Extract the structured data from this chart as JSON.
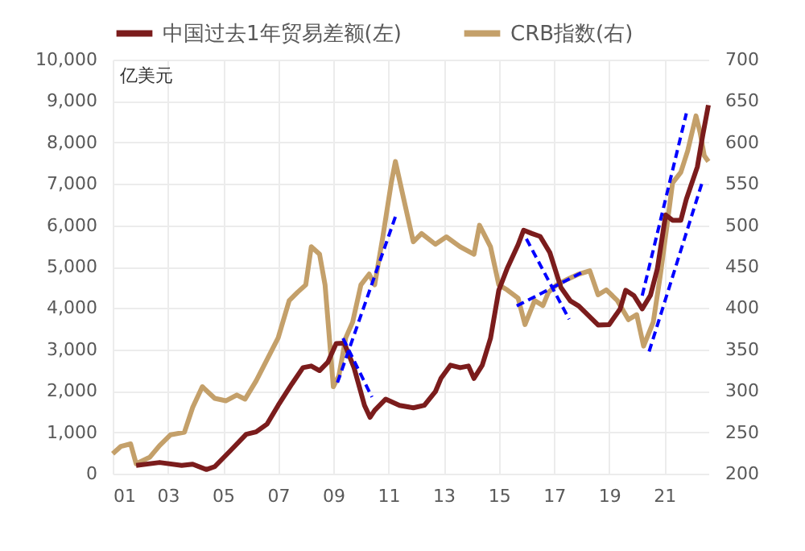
{
  "chart_data": {
    "type": "line",
    "ylabel": "亿美元",
    "legend": "top",
    "grid": true,
    "xlim": [
      2001,
      2022.6
    ],
    "xticks": [
      {
        "value": 2001,
        "label": "01"
      },
      {
        "value": 2003,
        "label": "03"
      },
      {
        "value": 2005,
        "label": "05"
      },
      {
        "value": 2007,
        "label": "07"
      },
      {
        "value": 2009,
        "label": "09"
      },
      {
        "value": 2011,
        "label": "11"
      },
      {
        "value": 2013,
        "label": "13"
      },
      {
        "value": 2015,
        "label": "15"
      },
      {
        "value": 2017,
        "label": "17"
      },
      {
        "value": 2019,
        "label": "19"
      },
      {
        "value": 2021,
        "label": "21"
      }
    ],
    "ylim": [
      0,
      10000
    ],
    "yticks": [
      0,
      {
        "value": 1000,
        "label": "1,000"
      },
      {
        "value": 2000,
        "label": "2,000"
      },
      {
        "value": 3000,
        "label": "3,000"
      },
      {
        "value": 4000,
        "label": "4,000"
      },
      {
        "value": 5000,
        "label": "5,000"
      },
      {
        "value": 6000,
        "label": "6,000"
      },
      {
        "value": 7000,
        "label": "7,000"
      },
      {
        "value": 8000,
        "label": "8,000"
      },
      {
        "value": 9000,
        "label": "9,000"
      },
      {
        "value": 10000,
        "label": "10,000"
      }
    ],
    "y2lim": [
      200,
      700
    ],
    "y2ticks": [
      200,
      250,
      300,
      350,
      400,
      450,
      500,
      550,
      600,
      650,
      700
    ],
    "series": [
      {
        "name": "中国过去1年贸易差额(左)",
        "color": "#7b1c1c",
        "x": [
          2001.85,
          2002.7,
          2003.5,
          2003.9,
          2004.4,
          2004.7,
          2005.26,
          2005.84,
          2006.2,
          2006.6,
          2007.0,
          2007.5,
          2007.9,
          2008.2,
          2008.5,
          2008.8,
          2009.1,
          2009.4,
          2009.75,
          2010.13,
          2010.33,
          2010.5,
          2010.9,
          2011.4,
          2011.9,
          2012.3,
          2012.7,
          2012.9,
          2013.25,
          2013.6,
          2013.9,
          2014.1,
          2014.4,
          2014.7,
          2015.0,
          2015.3,
          2015.7,
          2015.9,
          2016.2,
          2016.5,
          2016.85,
          2017.25,
          2017.6,
          2017.9,
          2018.6,
          2019.0,
          2019.4,
          2019.6,
          2019.9,
          2020.2,
          2020.5,
          2020.75,
          2021.05,
          2021.3,
          2021.6,
          2021.8,
          2022.2,
          2022.4,
          2022.6
        ],
        "values": [
          200,
          270,
          200,
          230,
          100,
          170,
          550,
          950,
          1010,
          1200,
          1650,
          2170,
          2560,
          2600,
          2490,
          2690,
          3140,
          3150,
          2560,
          1650,
          1360,
          1530,
          1800,
          1650,
          1590,
          1650,
          1980,
          2300,
          2620,
          2560,
          2600,
          2300,
          2620,
          3270,
          4430,
          4950,
          5530,
          5880,
          5800,
          5730,
          5340,
          4500,
          4170,
          4050,
          3590,
          3600,
          3980,
          4430,
          4300,
          3980,
          4310,
          4950,
          6250,
          6120,
          6120,
          6630,
          7410,
          8190,
          8900
        ]
      },
      {
        "name": "CRB指数(右)",
        "color": "#c4a06a",
        "axis": "y2",
        "x": [
          2001.0,
          2001.3,
          2001.65,
          2001.85,
          2002.35,
          2002.7,
          2003.1,
          2003.6,
          2003.9,
          2004.25,
          2004.7,
          2005.1,
          2005.5,
          2005.8,
          2006.2,
          2006.6,
          2007.0,
          2007.4,
          2007.7,
          2008.0,
          2008.2,
          2008.5,
          2008.7,
          2009.0,
          2009.2,
          2009.45,
          2009.7,
          2010.0,
          2010.3,
          2010.5,
          2010.8,
          2011.1,
          2011.25,
          2011.55,
          2011.9,
          2012.2,
          2012.7,
          2013.1,
          2013.6,
          2014.1,
          2014.3,
          2014.7,
          2015.0,
          2015.3,
          2015.7,
          2015.95,
          2016.3,
          2016.6,
          2016.8,
          2017.1,
          2017.5,
          2017.9,
          2018.3,
          2018.6,
          2018.9,
          2019.3,
          2019.7,
          2020.0,
          2020.25,
          2020.6,
          2020.85,
          2021.1,
          2021.3,
          2021.6,
          2021.85,
          2022.15,
          2022.3,
          2022.45,
          2022.6
        ],
        "values": [
          224,
          233,
          236,
          212,
          220,
          234,
          247,
          250,
          280,
          305,
          291,
          288,
          295,
          290,
          312,
          338,
          364,
          409,
          419,
          428,
          474,
          465,
          428,
          305,
          318,
          364,
          383,
          428,
          441,
          428,
          487,
          551,
          577,
          532,
          480,
          490,
          477,
          486,
          474,
          465,
          500,
          474,
          428,
          422,
          412,
          380,
          409,
          403,
          419,
          428,
          435,
          441,
          445,
          416,
          422,
          409,
          386,
          392,
          354,
          383,
          438,
          500,
          551,
          564,
          590,
          632,
          612,
          584,
          577
        ]
      },
      {
        "color": "#0000ff",
        "line_style": "dashed",
        "x": [
          2009.15,
          2011.3
        ],
        "values": [
          2200,
          6300
        ]
      },
      {
        "color": "#0000ff",
        "line_style": "dashed",
        "x": [
          2009.35,
          2010.4
        ],
        "values": [
          3270,
          1850
        ]
      },
      {
        "color": "#0000ff",
        "line_style": "dashed",
        "x": [
          2016.0,
          2017.55
        ],
        "values": [
          5670,
          3730
        ]
      },
      {
        "color": "#0000ff",
        "line_style": "dashed",
        "x": [
          2015.65,
          2018.1
        ],
        "values": [
          4050,
          4890
        ]
      },
      {
        "color": "#0000ff",
        "line_style": "dashed",
        "x": [
          2020.2,
          2021.8
        ],
        "values": [
          4300,
          8700
        ]
      },
      {
        "color": "#0000ff",
        "line_style": "dashed",
        "x": [
          2020.45,
          2022.4
        ],
        "values": [
          2950,
          7090
        ]
      }
    ]
  }
}
